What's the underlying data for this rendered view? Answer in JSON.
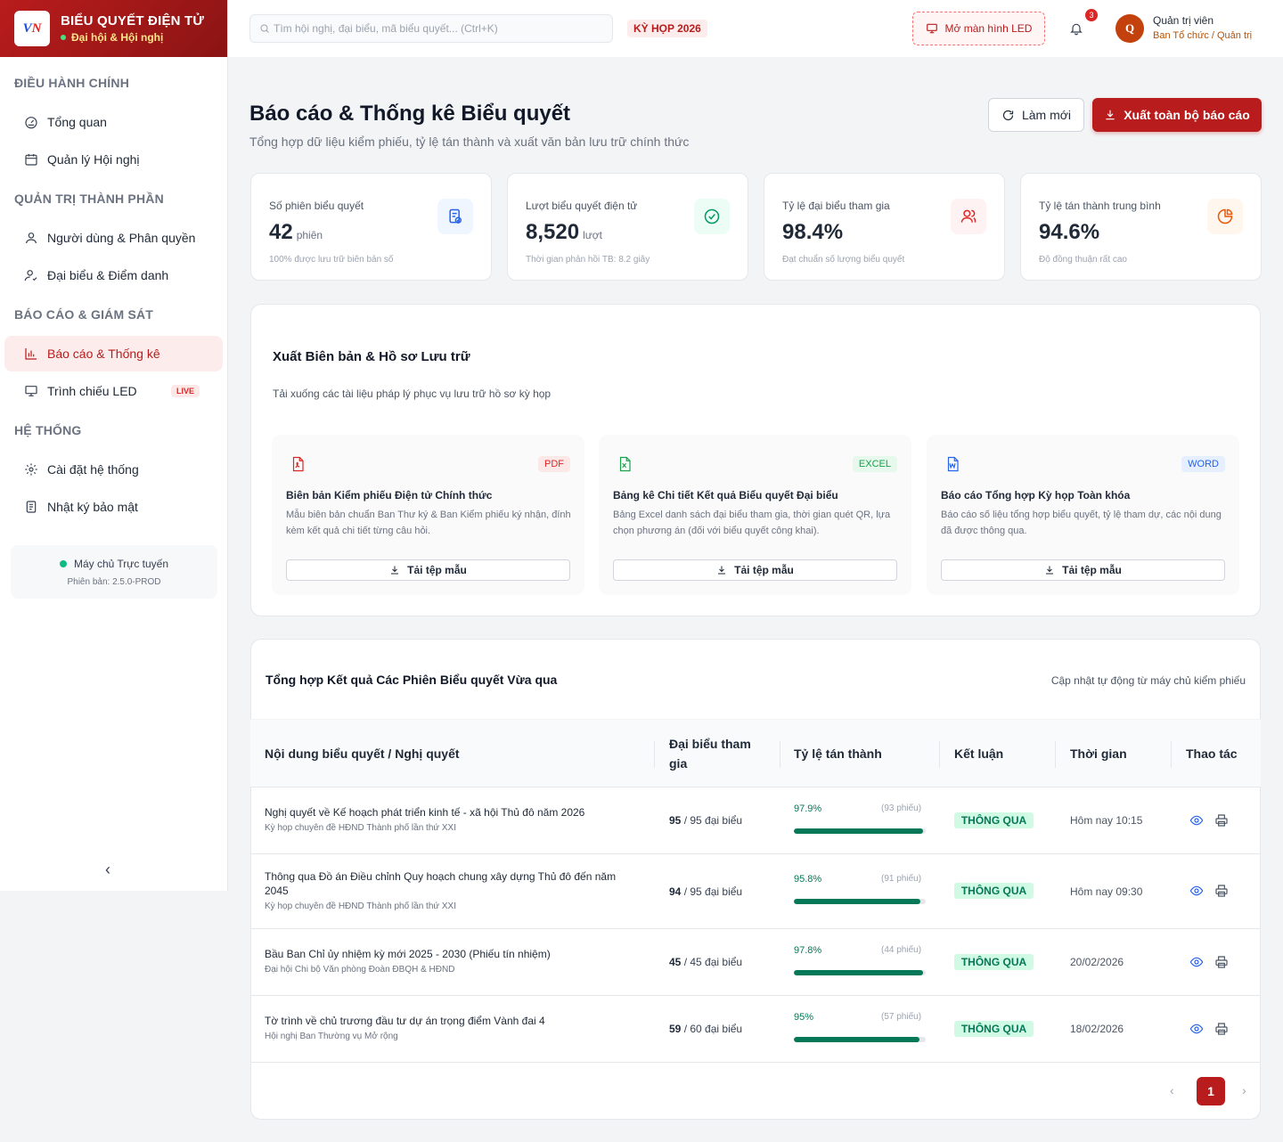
{
  "brand": {
    "title": "BIỂU QUYẾT ĐIỆN TỬ",
    "subtitle": "Đại hội & Hội nghị",
    "logo_v": "V",
    "logo_n": "N"
  },
  "sidebar": {
    "sections": [
      {
        "label": "ĐIỀU HÀNH CHÍNH"
      },
      {
        "label": "QUẢN TRỊ THÀNH PHẦN"
      },
      {
        "label": "BÁO CÁO & GIÁM SÁT"
      },
      {
        "label": "HỆ THỐNG"
      }
    ],
    "items": [
      {
        "label": "Tổng quan",
        "icon": "gauge-icon"
      },
      {
        "label": "Quản lý Hội nghị",
        "icon": "calendar-icon"
      },
      {
        "label": "Người dùng & Phân quyền",
        "icon": "user-icon"
      },
      {
        "label": "Đại biểu & Điểm danh",
        "icon": "user-check-icon"
      },
      {
        "label": "Báo cáo & Thống kê",
        "icon": "bar-chart-icon",
        "active": true
      },
      {
        "label": "Trình chiếu LED",
        "icon": "monitor-icon",
        "badge": "LIVE"
      },
      {
        "label": "Cài đặt hệ thống",
        "icon": "gear-icon"
      },
      {
        "label": "Nhật ký bảo mật",
        "icon": "log-icon"
      }
    ],
    "server_status": "Máy chủ Trực tuyến",
    "version": "Phiên bản: 2.5.0-PROD",
    "collapse_glyph": "‹"
  },
  "header": {
    "search_placeholder": "Tìm hội nghị, đại biểu, mã biểu quyết... (Ctrl+K)",
    "session_badge": "KỲ HỌP 2026",
    "led_button": "Mở màn hình LED",
    "notification_count": "3",
    "avatar_initial": "Q",
    "user_name": "Quản trị viên",
    "user_role": "Ban Tổ chức / Quản trị"
  },
  "page": {
    "title": "Báo cáo & Thống kê Biểu quyết",
    "subtitle": "Tổng hợp dữ liệu kiểm phiếu, tỷ lệ tán thành và xuất văn bản lưu trữ chính thức",
    "refresh_label": "Làm mới",
    "export_label": "Xuất toàn bộ báo cáo"
  },
  "stats": [
    {
      "label": "Số phiên biểu quyết",
      "value": "42",
      "unit": "phiên",
      "note": "100% được lưu trữ biên bản số",
      "icon": "document-check-icon",
      "color": "#2563eb",
      "bg": "#eff6ff"
    },
    {
      "label": "Lượt biểu quyết điện tử",
      "value": "8,520",
      "unit": "lượt",
      "note": "Thời gian phản hồi TB: 8.2 giây",
      "icon": "check-circle-icon",
      "color": "#059669",
      "bg": "#ecfdf5"
    },
    {
      "label": "Tỷ lệ đại biểu tham gia",
      "value": "98.4%",
      "unit": "",
      "note": "Đạt chuẩn số lượng biểu quyết",
      "icon": "users-icon",
      "color": "#dc2626",
      "bg": "#fef2f2"
    },
    {
      "label": "Tỷ lệ tán thành trung bình",
      "value": "94.6%",
      "unit": "",
      "note": "Độ đồng thuận rất cao",
      "icon": "pie-chart-icon",
      "color": "#ea580c",
      "bg": "#fff7ed"
    }
  ],
  "export_section": {
    "title": "Xuất Biên bản & Hồ sơ Lưu trữ",
    "subtitle": "Tải xuống các tài liệu pháp lý phục vụ lưu trữ hồ sơ kỳ họp",
    "docs": [
      {
        "tag": "PDF",
        "title": "Biên bản Kiểm phiếu Điện tử Chính thức",
        "desc": "Mẫu biên bản chuẩn Ban Thư ký & Ban Kiểm phiếu ký nhận, đính kèm kết quả chi tiết từng câu hỏi.",
        "button": "Tải tệp mẫu",
        "icon": "pdf-file-icon",
        "color": "#dc2626",
        "bg": "#fde8e8"
      },
      {
        "tag": "EXCEL",
        "title": "Bảng kê Chi tiết Kết quả Biểu quyết Đại biểu",
        "desc": "Bảng Excel danh sách đại biểu tham gia, thời gian quét QR, lựa chọn phương án (đối với biểu quyết công khai).",
        "button": "Tải tệp mẫu",
        "icon": "excel-file-icon",
        "color": "#16a34a",
        "bg": "#e7f8ec"
      },
      {
        "tag": "WORD",
        "title": "Báo cáo Tổng hợp Kỳ họp Toàn khóa",
        "desc": "Báo cáo số liệu tổng hợp biểu quyết, tỷ lệ tham dự, các nội dung đã được thông qua.",
        "button": "Tải tệp mẫu",
        "icon": "word-file-icon",
        "color": "#2563eb",
        "bg": "#e6efff"
      }
    ]
  },
  "results": {
    "title": "Tổng hợp Kết quả Các Phiên Biểu quyết Vừa qua",
    "auto_update": "Cập nhật tự động từ máy chủ kiểm phiếu",
    "columns": [
      "Nội dung biểu quyết / Nghị quyết",
      "Đại biểu tham gia",
      "Tỷ lệ tán thành",
      "Kết luận",
      "Thời gian",
      "Thao tác"
    ],
    "rows": [
      {
        "title": "Nghị quyết về Kế hoạch phát triển kinh tế - xã hội Thủ đô năm 2026",
        "sub": "Kỳ họp chuyên đề HĐND Thành phố lần thứ XXI",
        "attended": "95",
        "total": " / 95 đại biểu",
        "pct": "97.9%",
        "pct_value": 0.979,
        "votes": "(93 phiếu)",
        "result": "THÔNG QUA",
        "time": "Hôm nay 10:15"
      },
      {
        "title": "Thông qua Đồ án Điều chỉnh Quy hoạch chung xây dựng Thủ đô đến năm 2045",
        "sub": "Kỳ họp chuyên đề HĐND Thành phố lần thứ XXI",
        "attended": "94",
        "total": " / 95 đại biểu",
        "pct": "95.8%",
        "pct_value": 0.958,
        "votes": "(91 phiếu)",
        "result": "THÔNG QUA",
        "time": "Hôm nay 09:30"
      },
      {
        "title": "Bầu Ban Chỉ ủy nhiệm kỳ mới 2025 - 2030 (Phiếu tín nhiệm)",
        "sub": "Đại hội Chi bộ Văn phòng Đoàn ĐBQH & HĐND",
        "attended": "45",
        "total": " / 45 đại biểu",
        "pct": "97.8%",
        "pct_value": 0.978,
        "votes": "(44 phiếu)",
        "result": "THÔNG QUA",
        "time": "20/02/2026"
      },
      {
        "title": "Tờ trình về chủ trương đầu tư dự án trọng điểm Vành đai 4",
        "sub": "Hội nghị Ban Thường vụ Mở rộng",
        "attended": "59",
        "total": " / 60 đại biểu",
        "pct": "95%",
        "pct_value": 0.95,
        "votes": "(57 phiếu)",
        "result": "THÔNG QUA",
        "time": "18/02/2026"
      }
    ],
    "pagination": {
      "prev": "‹",
      "current": "1",
      "next": "›"
    }
  }
}
